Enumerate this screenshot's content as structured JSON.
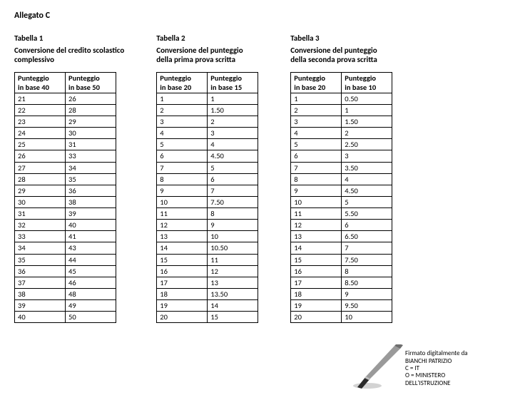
{
  "pageTitle": "Allegato C",
  "tables": [
    {
      "title": "Tabella 1",
      "subtitle": "Conversione del credito scolastico\ncomplessivo",
      "headers": [
        "Punteggio\nin base 40",
        "Punteggio\nin base 50"
      ],
      "rows": [
        [
          "21",
          "26"
        ],
        [
          "22",
          "28"
        ],
        [
          "23",
          "29"
        ],
        [
          "24",
          "30"
        ],
        [
          "25",
          "31"
        ],
        [
          "26",
          "33"
        ],
        [
          "27",
          "34"
        ],
        [
          "28",
          "35"
        ],
        [
          "29",
          "36"
        ],
        [
          "30",
          "38"
        ],
        [
          "31",
          "39"
        ],
        [
          "32",
          "40"
        ],
        [
          "33",
          "41"
        ],
        [
          "34",
          "43"
        ],
        [
          "35",
          "44"
        ],
        [
          "36",
          "45"
        ],
        [
          "37",
          "46"
        ],
        [
          "38",
          "48"
        ],
        [
          "39",
          "49"
        ],
        [
          "40",
          "50"
        ]
      ]
    },
    {
      "title": "Tabella 2",
      "subtitle": "Conversione del punteggio\ndella prima prova scritta",
      "headers": [
        "Punteggio\nin base 20",
        "Punteggio\nin base 15"
      ],
      "rows": [
        [
          "1",
          "1"
        ],
        [
          "2",
          "1.50"
        ],
        [
          "3",
          "2"
        ],
        [
          "4",
          "3"
        ],
        [
          "5",
          "4"
        ],
        [
          "6",
          "4.50"
        ],
        [
          "7",
          "5"
        ],
        [
          "8",
          "6"
        ],
        [
          "9",
          "7"
        ],
        [
          "10",
          "7.50"
        ],
        [
          "11",
          "8"
        ],
        [
          "12",
          "9"
        ],
        [
          "13",
          "10"
        ],
        [
          "14",
          "10.50"
        ],
        [
          "15",
          "11"
        ],
        [
          "16",
          "12"
        ],
        [
          "17",
          "13"
        ],
        [
          "18",
          "13.50"
        ],
        [
          "19",
          "14"
        ],
        [
          "20",
          "15"
        ]
      ]
    },
    {
      "title": "Tabella 3",
      "subtitle": "Conversione del punteggio\ndella seconda prova scritta",
      "headers": [
        "Punteggio\nin base 20",
        "Punteggio\nin base 10"
      ],
      "rows": [
        [
          "1",
          "0.50"
        ],
        [
          "2",
          "1"
        ],
        [
          "3",
          "1.50"
        ],
        [
          "4",
          "2"
        ],
        [
          "5",
          "2.50"
        ],
        [
          "6",
          "3"
        ],
        [
          "7",
          "3.50"
        ],
        [
          "8",
          "4"
        ],
        [
          "9",
          "4.50"
        ],
        [
          "10",
          "5"
        ],
        [
          "11",
          "5.50"
        ],
        [
          "12",
          "6"
        ],
        [
          "13",
          "6.50"
        ],
        [
          "14",
          "7"
        ],
        [
          "15",
          "7.50"
        ],
        [
          "16",
          "8"
        ],
        [
          "17",
          "8.50"
        ],
        [
          "18",
          "9"
        ],
        [
          "19",
          "9.50"
        ],
        [
          "20",
          "10"
        ]
      ]
    }
  ],
  "signature": {
    "line1": "Firmato digitalmente da",
    "line2": "BIANCHI PATRIZIO",
    "line3": "C = IT",
    "line4": "O = MINISTERO",
    "line5": "DELL'ISTRUZIONE"
  },
  "style": {
    "borderColor": "#000000",
    "background": "#ffffff",
    "textColor": "#000000",
    "fontSize": 11,
    "penGrey": "#808080",
    "penDark": "#2b2b2b"
  }
}
